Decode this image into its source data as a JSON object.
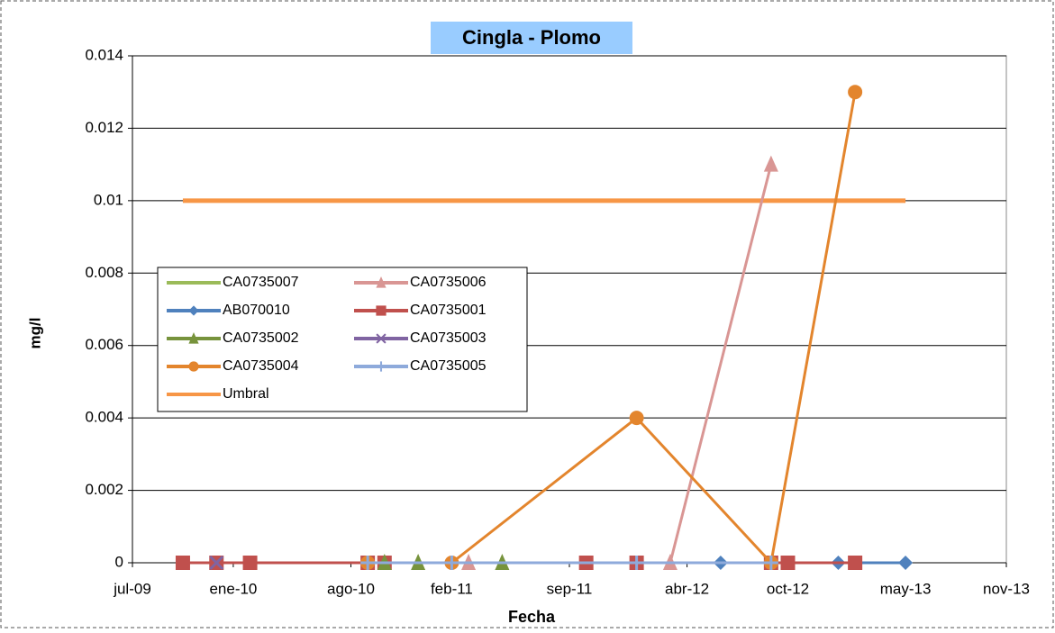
{
  "chart_data": {
    "type": "line",
    "title": "Cingla - Plomo",
    "xlabel": "Fecha",
    "ylabel": "mg/l",
    "xlim": [
      "2009-07",
      "2013-11"
    ],
    "xticks": [
      {
        "value": "2009-07",
        "label": "jul-09"
      },
      {
        "value": "2010-01",
        "label": "ene-10"
      },
      {
        "value": "2010-08",
        "label": "ago-10"
      },
      {
        "value": "2011-02",
        "label": "feb-11"
      },
      {
        "value": "2011-09",
        "label": "sep-11"
      },
      {
        "value": "2012-04",
        "label": "abr-12"
      },
      {
        "value": "2012-10",
        "label": "oct-12"
      },
      {
        "value": "2013-05",
        "label": "may-13"
      },
      {
        "value": "2013-11",
        "label": "nov-13"
      }
    ],
    "ylim": [
      0,
      0.014
    ],
    "yticks": [
      0,
      0.002,
      0.004,
      0.006,
      0.008,
      0.01,
      0.012,
      0.014
    ],
    "grid": true,
    "series": [
      {
        "name": "CA0735007",
        "color": "#9bbb59",
        "marker": "none",
        "x": [
          "2009-10",
          "2010-10"
        ],
        "values": [
          0,
          0
        ]
      },
      {
        "name": "CA0735006",
        "color": "#d99694",
        "marker": "triangle",
        "x": [
          "2011-03",
          "2012-03",
          "2012-09"
        ],
        "values": [
          0,
          0,
          0.011
        ]
      },
      {
        "name": "AB070010",
        "color": "#4f81bd",
        "marker": "diamond",
        "x": [
          "2009-10",
          "2012-01",
          "2012-06",
          "2013-01",
          "2013-05"
        ],
        "values": [
          0,
          0,
          0,
          0,
          0
        ]
      },
      {
        "name": "CA0735001",
        "color": "#c0504d",
        "marker": "square",
        "x": [
          "2009-10",
          "2009-12",
          "2010-02",
          "2010-09",
          "2010-10",
          "2011-10",
          "2012-01",
          "2012-09",
          "2012-10",
          "2013-02"
        ],
        "values": [
          0,
          0,
          0,
          0,
          0,
          0,
          0,
          0,
          0,
          0
        ]
      },
      {
        "name": "CA0735002",
        "color": "#77933c",
        "marker": "triangle",
        "x": [
          "2010-10",
          "2010-12",
          "2011-05"
        ],
        "values": [
          0,
          0,
          0
        ]
      },
      {
        "name": "CA0735003",
        "color": "#8064a2",
        "marker": "x",
        "x": [
          "2009-12"
        ],
        "values": [
          0
        ]
      },
      {
        "name": "CA0735004",
        "color": "#e3852d",
        "marker": "circle",
        "x": [
          "2010-09",
          "2011-02",
          "2012-01",
          "2012-09",
          "2013-02"
        ],
        "values": [
          0,
          0,
          0.004,
          0,
          0.013
        ]
      },
      {
        "name": "CA0735005",
        "color": "#8eaadb",
        "marker": "plus",
        "x": [
          "2010-09",
          "2011-02",
          "2012-01",
          "2012-09"
        ],
        "values": [
          0,
          0,
          0,
          0
        ]
      },
      {
        "name": "Umbral",
        "color": "#f79646",
        "marker": "none",
        "x": [
          "2009-10",
          "2013-05"
        ],
        "values": [
          0.01,
          0.01
        ]
      }
    ]
  }
}
